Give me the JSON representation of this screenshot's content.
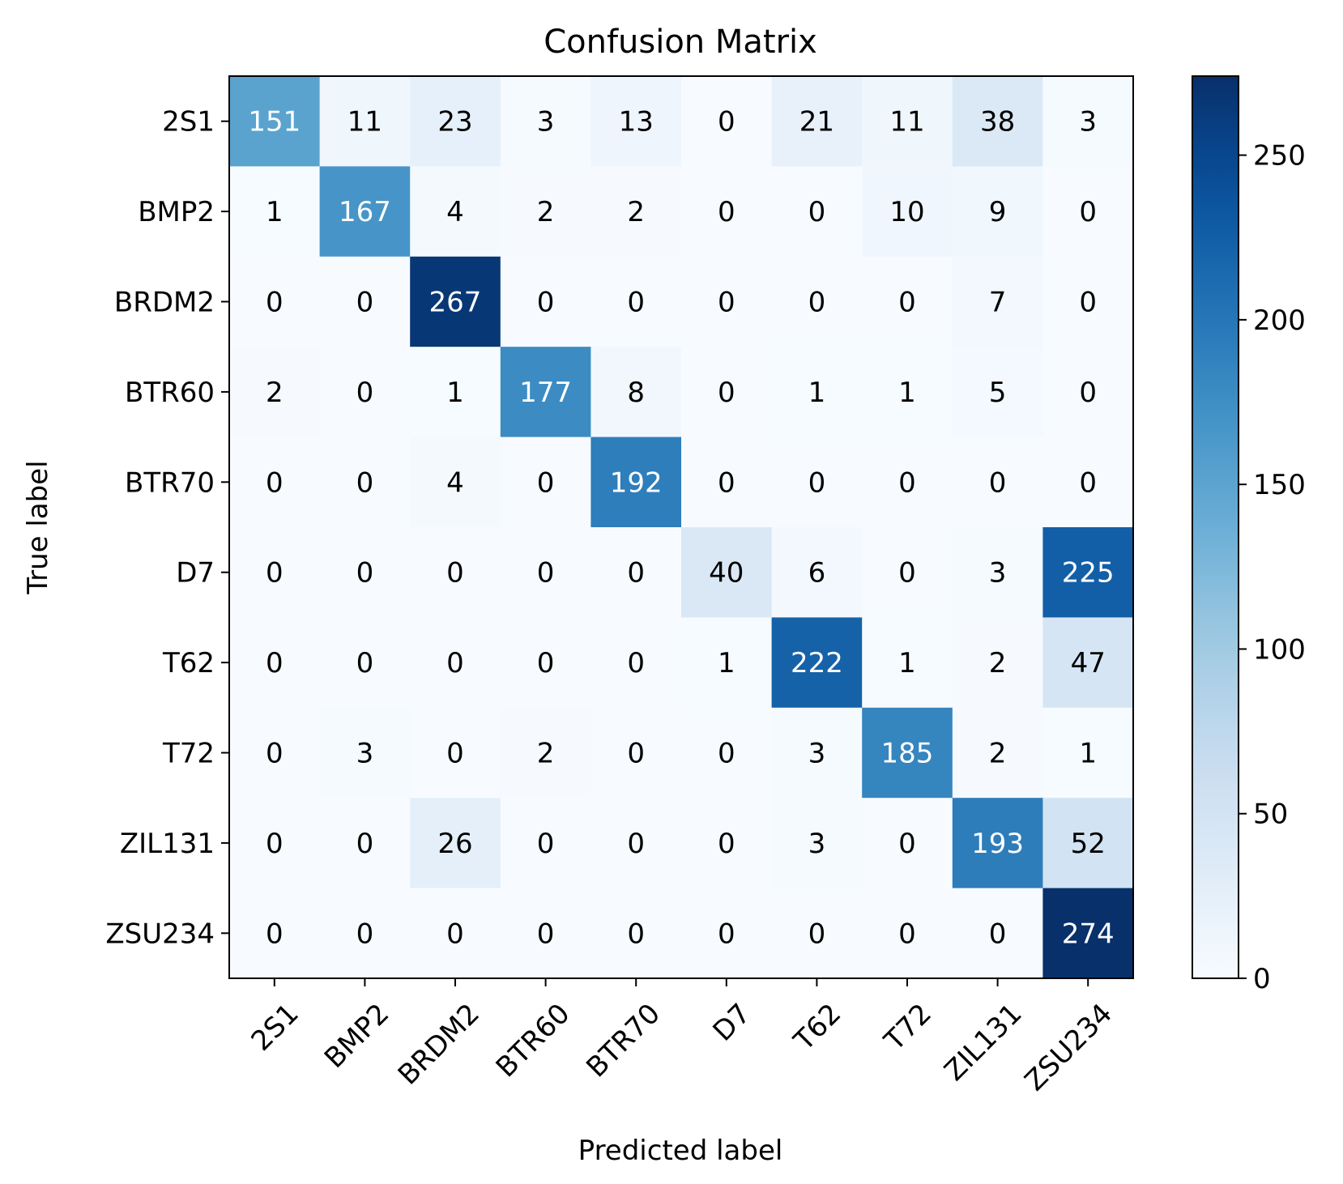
{
  "chart_data": {
    "type": "heatmap",
    "title": "Confusion Matrix",
    "xlabel": "Predicted label",
    "ylabel": "True label",
    "x_categories": [
      "2S1",
      "BMP2",
      "BRDM2",
      "BTR60",
      "BTR70",
      "D7",
      "T62",
      "T72",
      "ZIL131",
      "ZSU234"
    ],
    "y_categories": [
      "2S1",
      "BMP2",
      "BRDM2",
      "BTR60",
      "BTR70",
      "D7",
      "T62",
      "T72",
      "ZIL131",
      "ZSU234"
    ],
    "values": [
      [
        151,
        11,
        23,
        3,
        13,
        0,
        21,
        11,
        38,
        3
      ],
      [
        1,
        167,
        4,
        2,
        2,
        0,
        0,
        10,
        9,
        0
      ],
      [
        0,
        0,
        267,
        0,
        0,
        0,
        0,
        0,
        7,
        0
      ],
      [
        2,
        0,
        1,
        177,
        8,
        0,
        1,
        1,
        5,
        0
      ],
      [
        0,
        0,
        4,
        0,
        192,
        0,
        0,
        0,
        0,
        0
      ],
      [
        0,
        0,
        0,
        0,
        0,
        40,
        6,
        0,
        3,
        225
      ],
      [
        0,
        0,
        0,
        0,
        0,
        1,
        222,
        1,
        2,
        47
      ],
      [
        0,
        3,
        0,
        2,
        0,
        0,
        3,
        185,
        2,
        1
      ],
      [
        0,
        0,
        26,
        0,
        0,
        0,
        3,
        0,
        193,
        52
      ],
      [
        0,
        0,
        0,
        0,
        0,
        0,
        0,
        0,
        0,
        274
      ]
    ],
    "colormap": "Blues",
    "vmin": 0,
    "vmax": 274,
    "colorbar": {
      "ticks": [
        0,
        50,
        100,
        150,
        200,
        250
      ],
      "tick_labels": [
        "0",
        "50",
        "100",
        "150",
        "200",
        "250"
      ]
    },
    "x_tick_rotation": 45,
    "text_color_threshold": 137,
    "colors": {
      "text_dark": "#000000",
      "text_light": "#ffffff"
    }
  }
}
